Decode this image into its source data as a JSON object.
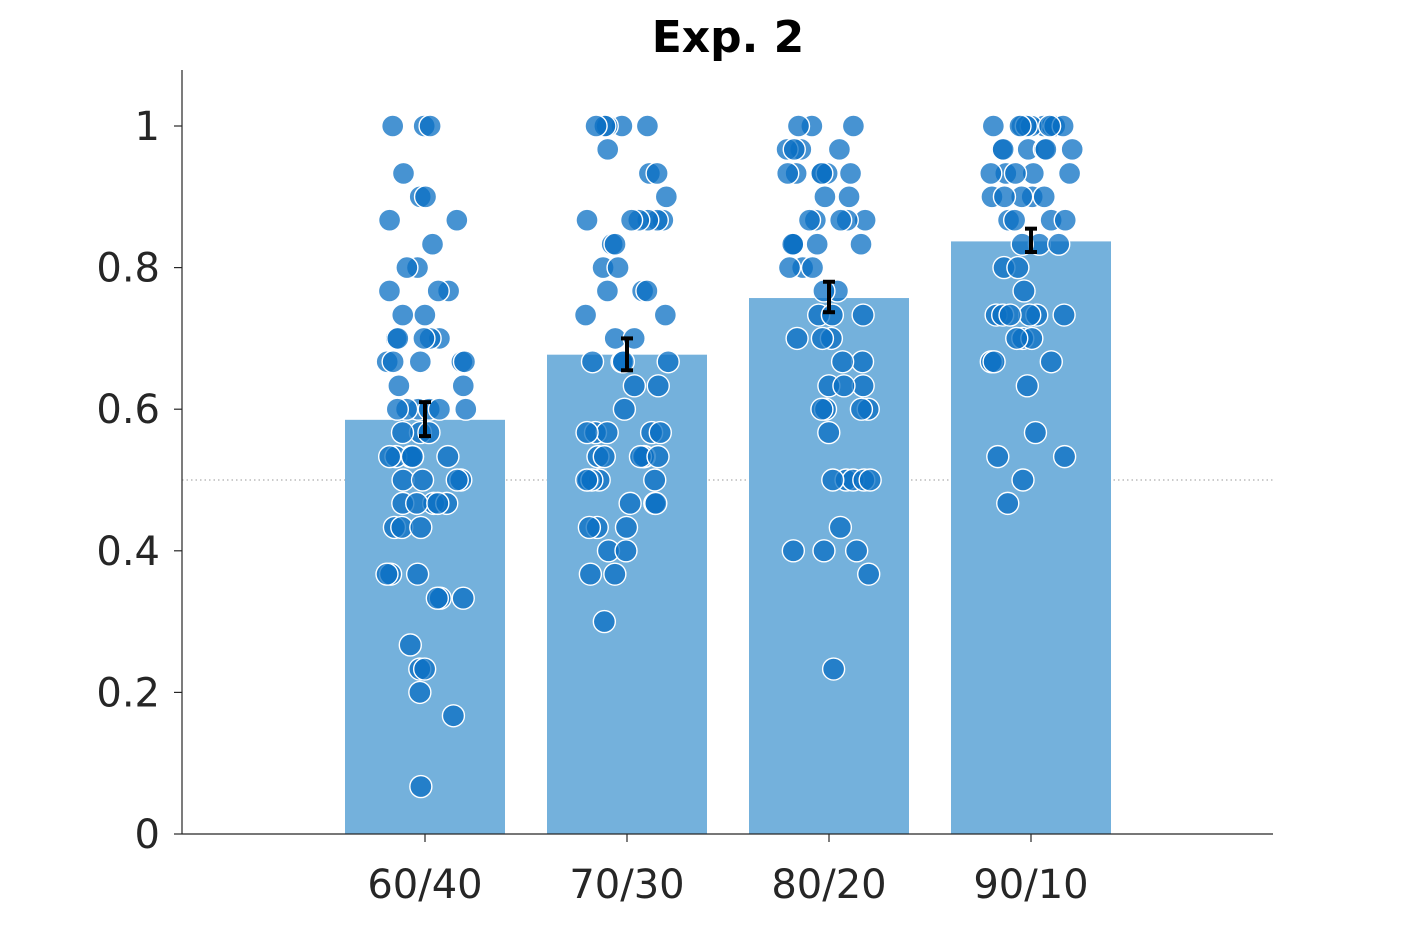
{
  "chart_data": {
    "type": "bar",
    "title": "Exp. 2",
    "xlabel": "",
    "ylabel": "",
    "categories": [
      "60/40",
      "70/30",
      "80/20",
      "90/10"
    ],
    "values": [
      0.585,
      0.677,
      0.757,
      0.837
    ],
    "error": [
      [
        0.562,
        0.61
      ],
      [
        0.655,
        0.7
      ],
      [
        0.737,
        0.78
      ],
      [
        0.822,
        0.855
      ]
    ],
    "ylim": [
      0,
      1.08
    ],
    "yticks": [
      0,
      0.2,
      0.4,
      0.6,
      0.8,
      1
    ],
    "ytick_labels": [
      "0",
      "0.2",
      "0.4",
      "0.6",
      "0.8",
      "1"
    ],
    "reference_line": 0.5,
    "grid": false,
    "colors": {
      "bar": "#74b1dc",
      "points": "#0a6fc3",
      "error": "#000000"
    },
    "points": [
      {
        "category": "60/40",
        "values": [
          1,
          1,
          1,
          0.933,
          0.9,
          0.9,
          0.867,
          0.867,
          0.833,
          0.8,
          0.8,
          0.767,
          0.767,
          0.767,
          0.733,
          0.733,
          0.7,
          0.7,
          0.7,
          0.7,
          0.7,
          0.667,
          0.667,
          0.667,
          0.667,
          0.667,
          0.633,
          0.633,
          0.6,
          0.6,
          0.6,
          0.6,
          0.6,
          0.6,
          0.567,
          0.567,
          0.567,
          0.533,
          0.533,
          0.533,
          0.533,
          0.533,
          0.533,
          0.5,
          0.5,
          0.5,
          0.5,
          0.467,
          0.467,
          0.467,
          0.467,
          0.467,
          0.433,
          0.433,
          0.433,
          0.367,
          0.367,
          0.367,
          0.333,
          0.333,
          0.333,
          0.267,
          0.233,
          0.233,
          0.2,
          0.167,
          0.067
        ]
      },
      {
        "category": "70/30",
        "values": [
          1,
          1,
          1,
          1,
          1,
          0.967,
          0.933,
          0.933,
          0.9,
          0.867,
          0.867,
          0.867,
          0.867,
          0.867,
          0.867,
          0.833,
          0.833,
          0.8,
          0.8,
          0.767,
          0.767,
          0.767,
          0.733,
          0.733,
          0.7,
          0.7,
          0.667,
          0.667,
          0.667,
          0.667,
          0.633,
          0.633,
          0.6,
          0.567,
          0.567,
          0.567,
          0.567,
          0.567,
          0.533,
          0.533,
          0.533,
          0.533,
          0.533,
          0.533,
          0.5,
          0.5,
          0.5,
          0.5,
          0.5,
          0.467,
          0.467,
          0.467,
          0.433,
          0.433,
          0.433,
          0.4,
          0.4,
          0.367,
          0.367,
          0.3
        ]
      },
      {
        "category": "80/20",
        "values": [
          1,
          1,
          1,
          0.967,
          0.967,
          0.967,
          0.967,
          0.933,
          0.933,
          0.933,
          0.933,
          0.933,
          0.933,
          0.9,
          0.9,
          0.867,
          0.867,
          0.867,
          0.867,
          0.867,
          0.833,
          0.833,
          0.833,
          0.833,
          0.833,
          0.8,
          0.8,
          0.8,
          0.767,
          0.767,
          0.733,
          0.733,
          0.733,
          0.7,
          0.7,
          0.7,
          0.667,
          0.667,
          0.633,
          0.633,
          0.633,
          0.6,
          0.6,
          0.6,
          0.6,
          0.567,
          0.5,
          0.5,
          0.5,
          0.5,
          0.5,
          0.433,
          0.4,
          0.4,
          0.4,
          0.367,
          0.233
        ]
      },
      {
        "category": "90/10",
        "values": [
          1,
          1,
          1,
          1,
          1,
          1,
          1,
          1,
          1,
          1,
          0.967,
          0.967,
          0.967,
          0.967,
          0.967,
          0.967,
          0.933,
          0.933,
          0.933,
          0.933,
          0.933,
          0.9,
          0.9,
          0.9,
          0.9,
          0.9,
          0.867,
          0.867,
          0.867,
          0.867,
          0.833,
          0.833,
          0.833,
          0.8,
          0.8,
          0.767,
          0.733,
          0.733,
          0.733,
          0.733,
          0.733,
          0.733,
          0.7,
          0.7,
          0.7,
          0.667,
          0.667,
          0.667,
          0.633,
          0.567,
          0.533,
          0.533,
          0.5,
          0.467
        ]
      }
    ]
  }
}
